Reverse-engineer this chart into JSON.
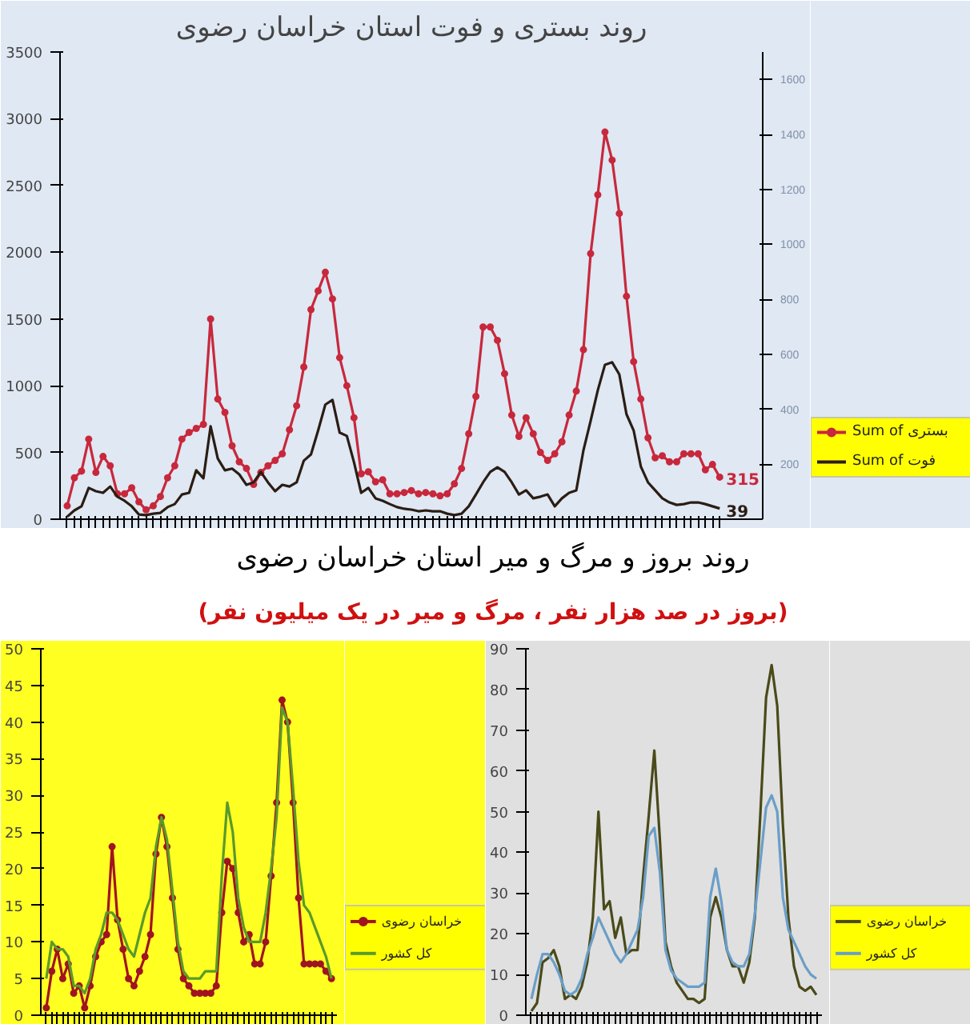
{
  "chart_data": [
    {
      "type": "line",
      "title": "روند بستری و فوت استان خراسان رضوی",
      "categories": [
        null,
        null,
        null,
        null,
        null,
        null,
        null,
        null,
        null,
        null,
        null,
        null,
        null,
        null,
        null,
        null,
        null,
        null,
        null,
        null,
        null,
        null,
        null,
        null,
        null,
        null,
        null,
        null,
        null,
        null,
        null,
        null,
        null,
        null,
        null,
        null,
        null,
        null,
        null,
        null,
        null,
        null,
        null,
        null,
        null,
        null,
        null,
        null,
        null,
        null,
        null,
        null,
        null,
        null,
        null,
        null,
        null,
        null,
        null,
        null,
        null,
        null,
        null,
        null,
        null,
        null,
        null,
        null,
        null,
        null,
        null,
        null,
        null,
        null,
        null,
        null,
        null,
        null,
        null,
        null,
        null,
        null,
        null,
        null,
        null,
        null,
        null,
        null,
        null,
        null,
        null,
        null
      ],
      "series": [
        {
          "name": "Sum of بستری",
          "color": "#c8283c",
          "marker": "circle",
          "values": [
            100,
            310,
            360,
            600,
            350,
            470,
            400,
            190,
            190,
            235,
            130,
            70,
            100,
            170,
            310,
            400,
            600,
            650,
            680,
            710,
            1500,
            900,
            800,
            550,
            430,
            380,
            260,
            350,
            400,
            440,
            490,
            670,
            850,
            1140,
            1570,
            1710,
            1850,
            1650,
            1210,
            1000,
            760,
            340,
            355,
            280,
            295,
            190,
            190,
            200,
            215,
            190,
            200,
            190,
            175,
            190,
            265,
            380,
            640,
            920,
            1440,
            1440,
            1340,
            1090,
            780,
            620,
            760,
            640,
            500,
            440,
            490,
            580,
            780,
            960,
            1270,
            1990,
            2430,
            2900,
            2690,
            2290,
            1670,
            1180,
            900,
            610,
            460,
            475,
            430,
            430,
            490,
            490,
            490,
            370,
            410,
            315
          ]
        },
        {
          "name": "Sum of فوت",
          "color": "#2b1d14",
          "axis": "y2",
          "values": [
            9,
            32,
            47,
            114,
            102,
            96,
            119,
            82,
            67,
            47,
            17,
            15,
            20,
            23,
            44,
            55,
            90,
            96,
            178,
            149,
            338,
            221,
            178,
            184,
            163,
            125,
            134,
            172,
            134,
            102,
            125,
            119,
            134,
            213,
            236,
            323,
            417,
            434,
            315,
            303,
            207,
            96,
            114,
            76,
            67,
            55,
            44,
            38,
            35,
            29,
            32,
            29,
            29,
            20,
            15,
            20,
            47,
            90,
            134,
            172,
            189,
            172,
            134,
            90,
            105,
            76,
            82,
            90,
            47,
            76,
            96,
            105,
            251,
            358,
            469,
            562,
            571,
            527,
            382,
            323,
            192,
            134,
            105,
            76,
            61,
            52,
            55,
            61,
            61,
            55,
            47,
            39
          ]
        }
      ],
      "ylim": [
        0,
        3500
      ],
      "yticks": [
        0,
        500,
        1000,
        1500,
        2000,
        2500,
        3000,
        3500
      ],
      "y2lim": [
        0,
        1700
      ],
      "y2ticks": [
        200,
        400,
        600,
        800,
        1000,
        1200,
        1400,
        1600
      ],
      "annotations": [
        "315",
        "39"
      ],
      "legend": "bottom right",
      "grid": false
    },
    {
      "type": "line",
      "title": "روند بروز و مرگ و میر استان خراسان رضوی",
      "subtitle": "(بروز در صد هزار نفر ، مرگ و میر در یک میلیون نفر)",
      "categories": [
        null,
        null,
        null,
        null,
        null,
        null,
        null,
        null,
        null,
        null,
        null,
        null,
        null,
        null,
        null,
        null,
        null,
        null,
        null,
        null,
        null,
        null,
        null,
        null,
        null,
        null,
        null,
        null,
        null,
        null,
        null,
        null,
        null,
        null,
        null,
        null,
        null,
        null,
        null,
        null,
        null,
        null,
        null,
        null,
        null,
        null,
        null,
        null,
        null,
        null,
        null,
        null,
        null
      ],
      "series": [
        {
          "name": "خراسان رضوی",
          "color": "#a01420",
          "marker": "circle",
          "values": [
            1,
            6,
            9,
            5,
            7,
            3,
            4,
            1,
            4,
            8,
            10,
            11,
            23,
            13,
            9,
            5,
            4,
            6,
            8,
            11,
            22,
            27,
            23,
            16,
            9,
            5,
            4,
            3,
            3,
            3,
            3,
            4,
            14,
            21,
            20,
            14,
            10,
            11,
            7,
            7,
            10,
            19,
            29,
            43,
            40,
            29,
            16,
            7,
            7,
            7,
            7,
            6,
            5
          ]
        },
        {
          "name": "کل کشور",
          "color": "#5a9a2a",
          "values": [
            5,
            10,
            9,
            9,
            8,
            4,
            4,
            3,
            5,
            9,
            11,
            14,
            14,
            13,
            11,
            9,
            8,
            11,
            14,
            16,
            23,
            27,
            24,
            17,
            10,
            6,
            5,
            5,
            5,
            6,
            6,
            6,
            19,
            29,
            25,
            16,
            12,
            10,
            10,
            10,
            14,
            20,
            27,
            42,
            40,
            31,
            21,
            15,
            14,
            12,
            10,
            8,
            5
          ]
        }
      ],
      "ylim": [
        0,
        50
      ],
      "yticks": [
        0,
        5,
        10,
        15,
        20,
        25,
        30,
        35,
        40,
        45,
        50
      ],
      "legend": "bottom right",
      "grid": false
    },
    {
      "type": "line",
      "categories": [
        null,
        null,
        null,
        null,
        null,
        null,
        null,
        null,
        null,
        null,
        null,
        null,
        null,
        null,
        null,
        null,
        null,
        null,
        null,
        null,
        null,
        null,
        null,
        null,
        null,
        null,
        null,
        null,
        null,
        null,
        null,
        null,
        null,
        null,
        null,
        null,
        null,
        null,
        null,
        null,
        null,
        null,
        null,
        null,
        null,
        null,
        null,
        null,
        null,
        null,
        null,
        null
      ],
      "series": [
        {
          "name": "خراسان رضوی",
          "color": "#4a4a1a",
          "values": [
            1,
            3,
            13,
            14,
            16,
            12,
            4,
            5,
            4,
            7,
            13,
            24,
            50,
            26,
            28,
            19,
            24,
            15,
            16,
            16,
            34,
            49,
            65,
            43,
            18,
            12,
            8,
            6,
            4,
            4,
            3,
            4,
            24,
            29,
            24,
            16,
            12,
            12,
            8,
            13,
            24,
            50,
            78,
            86,
            76,
            47,
            24,
            12,
            7,
            6,
            7,
            5
          ]
        },
        {
          "name": "کل کشور",
          "color": "#6a9ec8",
          "values": [
            4,
            10,
            15,
            15,
            13,
            10,
            6,
            5,
            6,
            9,
            15,
            19,
            24,
            21,
            18,
            15,
            13,
            15,
            18,
            21,
            29,
            44,
            46,
            35,
            16,
            11,
            9,
            8,
            7,
            7,
            7,
            8,
            29,
            36,
            28,
            16,
            13,
            12,
            12,
            15,
            25,
            38,
            51,
            54,
            50,
            29,
            21,
            18,
            15,
            12,
            10,
            9
          ]
        }
      ],
      "ylim": [
        0,
        90
      ],
      "yticks": [
        0,
        10,
        20,
        30,
        40,
        50,
        60,
        70,
        80,
        90
      ],
      "legend": "bottom right",
      "grid": false
    }
  ]
}
